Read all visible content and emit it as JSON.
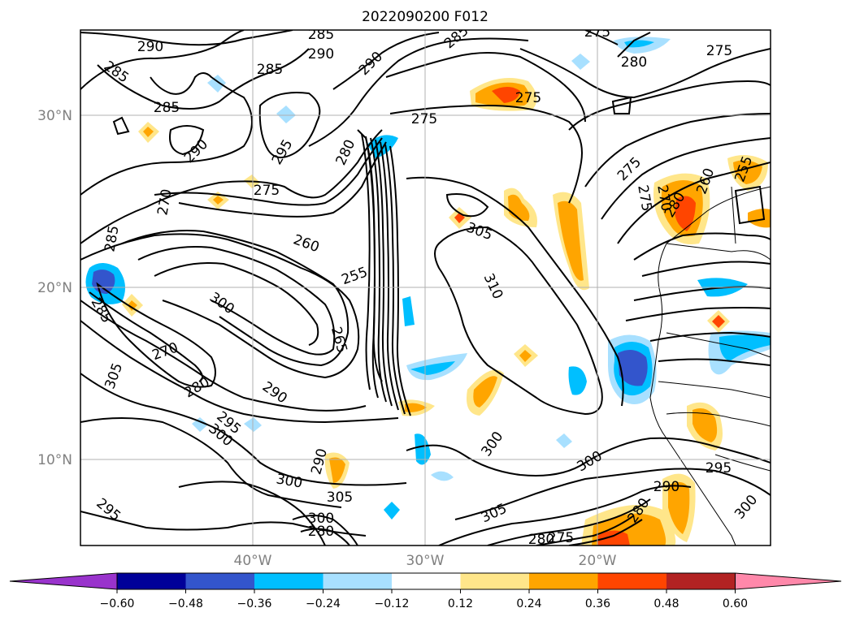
{
  "title": "2022090200 F012",
  "map": {
    "lat_ticks": [
      {
        "lat": 30,
        "label": "30°N"
      },
      {
        "lat": 20,
        "label": "20°N"
      },
      {
        "lat": 10,
        "label": "10°N"
      }
    ],
    "lon_ticks": [
      {
        "lon": -40,
        "label": "40°W"
      },
      {
        "lon": -30,
        "label": "30°W"
      },
      {
        "lon": -20,
        "label": "20°W"
      }
    ],
    "extent": {
      "lon_min": -50,
      "lon_max": -10,
      "lat_min": 5,
      "lat_max": 35
    },
    "gridlines": true,
    "contour_labels": [
      "290",
      "285",
      "285",
      "290",
      "285",
      "275",
      "275",
      "275",
      "285",
      "285",
      "290",
      "290",
      "280",
      "275",
      "295",
      "290",
      "285",
      "275",
      "280",
      "275",
      "280",
      "255",
      "260",
      "285",
      "270",
      "270",
      "275",
      "260",
      "305",
      "260",
      "255",
      "310",
      "285",
      "300",
      "265",
      "270",
      "305",
      "280",
      "290",
      "295",
      "300",
      "300",
      "290",
      "300",
      "305",
      "295",
      "290",
      "280",
      "305",
      "300",
      "295",
      "290",
      "285",
      "280",
      "275",
      "300",
      "280",
      "265",
      "270",
      "285",
      "300"
    ]
  },
  "colorbar": {
    "ticks": [
      "−0.60",
      "−0.48",
      "−0.36",
      "−0.24",
      "−0.12",
      "0.12",
      "0.24",
      "0.36",
      "0.48",
      "0.60"
    ],
    "colors": [
      "#9933cc",
      "#000099",
      "#3355cc",
      "#00bfff",
      "#a8e0ff",
      "#ffffff",
      "#ffe68a",
      "#ffa500",
      "#ff4500",
      "#b22222",
      "#ff88aa"
    ],
    "extend": "both"
  }
}
